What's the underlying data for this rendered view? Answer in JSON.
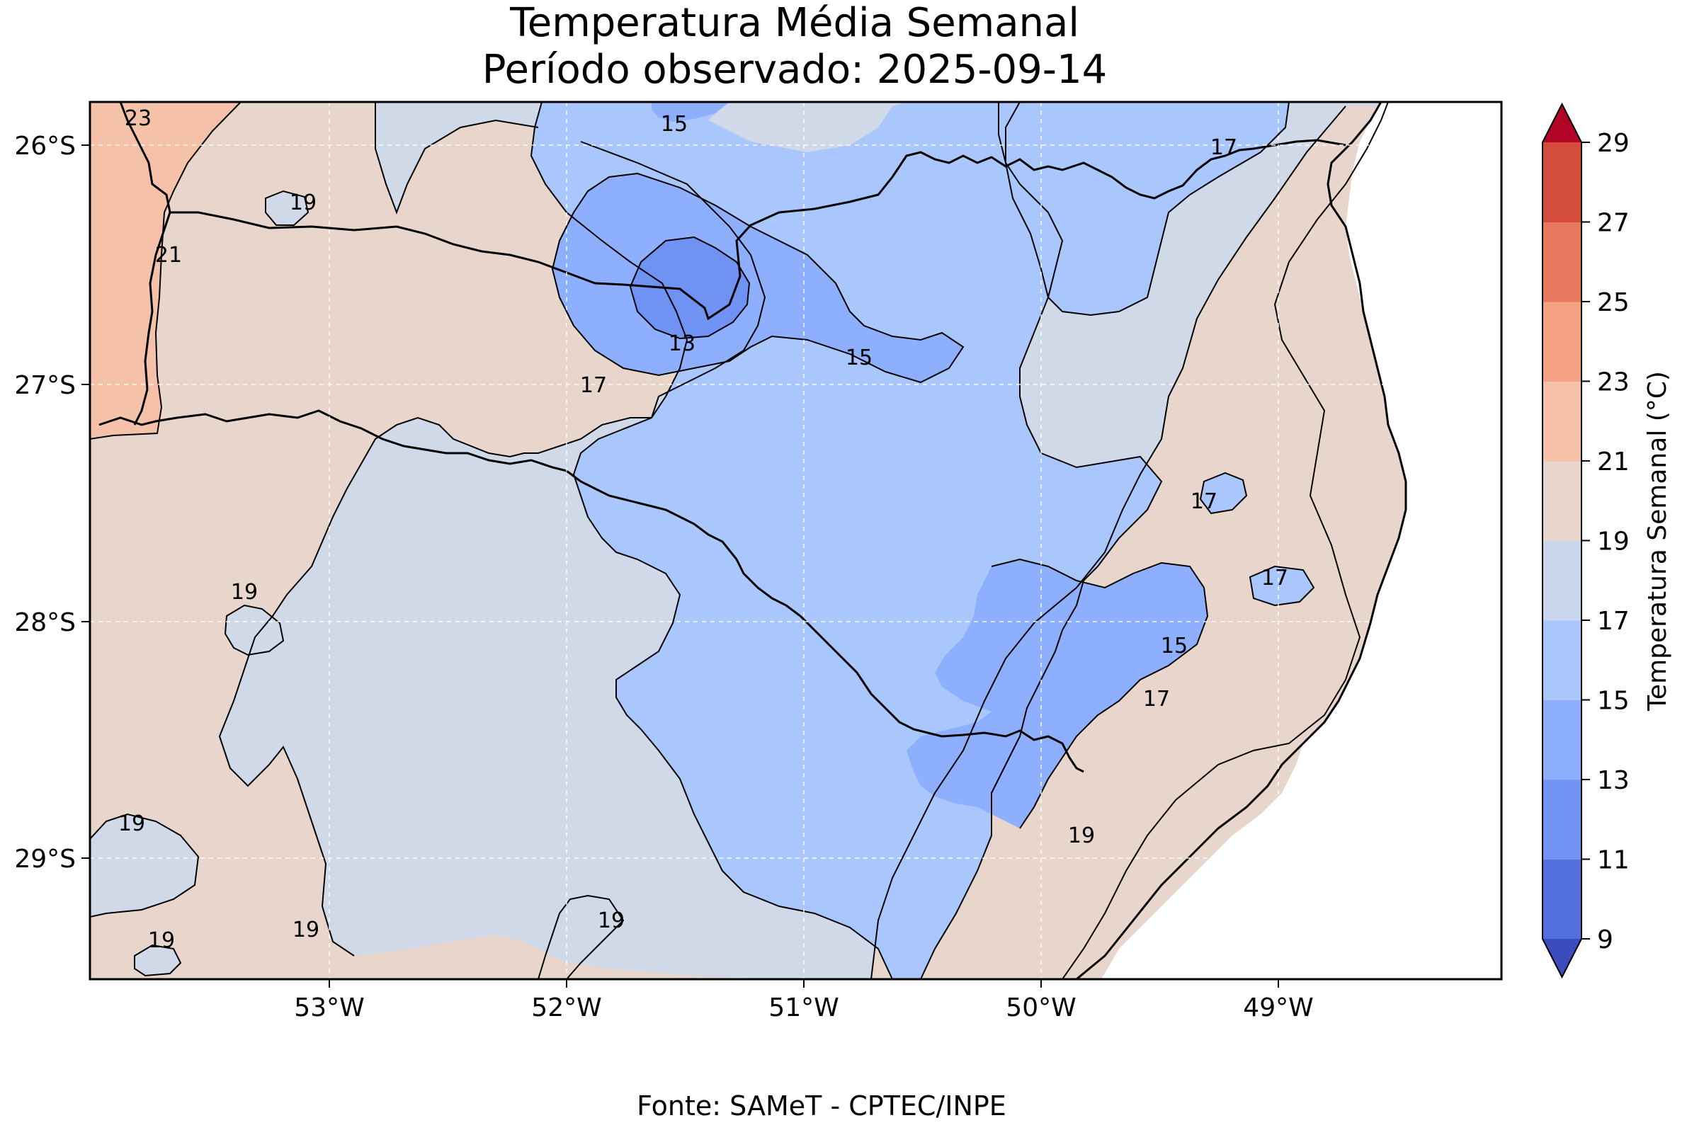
{
  "title": "Temperatura Média Semanal",
  "subtitle": "Período observado: 2025-09-14",
  "source": "Fonte: SAMeT - CPTEC/INPE",
  "map": {
    "lon_ticks": [
      "53°W",
      "52°W",
      "51°W",
      "50°W",
      "49°W"
    ],
    "lat_ticks": [
      "26°S",
      "27°S",
      "28°S",
      "29°S"
    ],
    "gridlines": true,
    "contour_labels": [
      "23",
      "21",
      "19",
      "15",
      "13",
      "15",
      "17",
      "17",
      "17",
      "17",
      "15",
      "17",
      "19",
      "19",
      "19",
      "19",
      "19",
      "19"
    ]
  },
  "colorbar": {
    "label": "Temperatura Semanal (°C)",
    "tick_labels": [
      "9",
      "11",
      "13",
      "15",
      "17",
      "19",
      "21",
      "23",
      "25",
      "27",
      "29"
    ],
    "colors": [
      "#3b4cc0",
      "#5470de",
      "#6f92f3",
      "#8daffd",
      "#aac7fd",
      "#c7d6ec",
      "#e8d6cc",
      "#f5c1a9",
      "#f4a283",
      "#e8785d",
      "#d44d3c",
      "#b40426"
    ]
  },
  "fill_colors": {
    "t13_15": "#8daffd",
    "t11_13": "#6f92f3",
    "t15_17": "#aac7fd",
    "t17_19": "#cfd9e8",
    "t19_21": "#e8d6cc",
    "t21_23": "#f5c1a9"
  }
}
